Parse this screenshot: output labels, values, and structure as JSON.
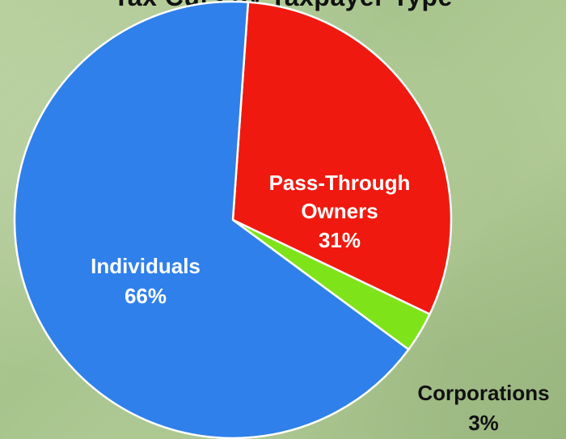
{
  "chart_data": {
    "type": "pie",
    "title": "Tax Cuts by Taxpayer Type",
    "slices": [
      {
        "name": "Individuals",
        "value": 66,
        "label": "66%",
        "color": "#2f80ea",
        "label_color": "#ffffff"
      },
      {
        "name": "Pass-Through Owners",
        "name_lines": [
          "Pass-Through",
          "Owners"
        ],
        "value": 31,
        "label": "31%",
        "color": "#f0190f",
        "label_color": "#ffffff"
      },
      {
        "name": "Corporations",
        "value": 3,
        "label": "3%",
        "color": "#7ee319",
        "label_color": "#111111"
      }
    ]
  }
}
